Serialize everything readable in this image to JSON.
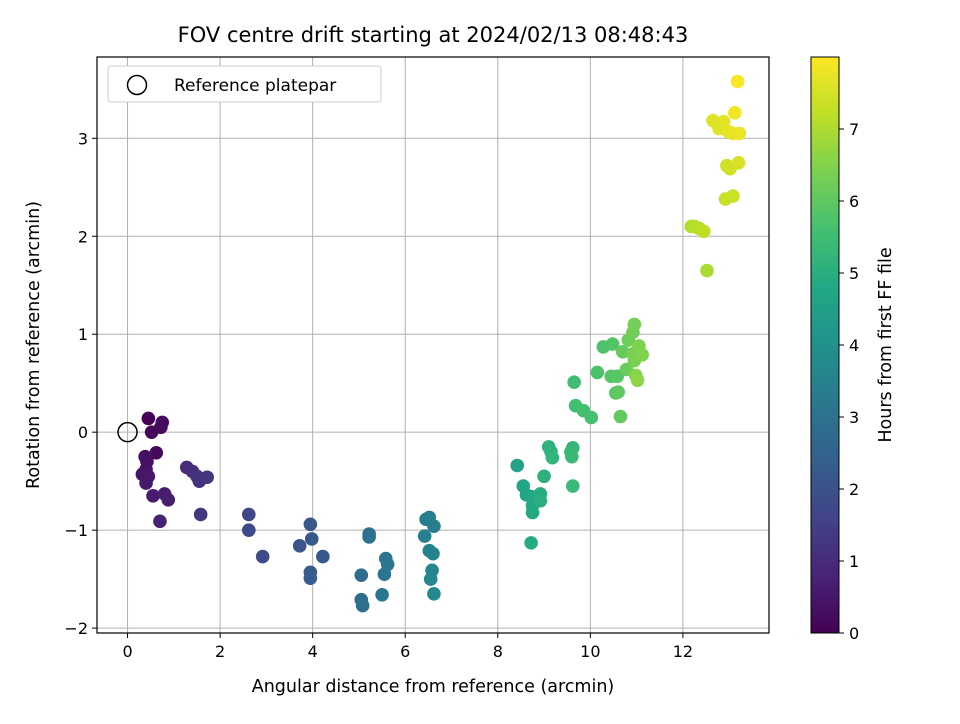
{
  "chart_data": {
    "type": "scatter",
    "title": "FOV centre drift starting at 2024/02/13 08:48:43",
    "xlabel": "Angular distance from reference (arcmin)",
    "ylabel": "Rotation from reference (arcmin)",
    "xlim": [
      -0.66,
      13.86
    ],
    "ylim": [
      -2.05,
      3.83
    ],
    "xticks": [
      0,
      2,
      4,
      6,
      8,
      10,
      12
    ],
    "yticks": [
      -2,
      -1,
      0,
      1,
      2,
      3
    ],
    "grid": true,
    "legend": {
      "position": "top-left",
      "entries": [
        "Reference platepar"
      ]
    },
    "reference_point": {
      "x": 0,
      "y": 0
    },
    "colorbar": {
      "label": "Hours from first FF file",
      "range": [
        0,
        8
      ],
      "ticks": [
        0,
        1,
        2,
        3,
        4,
        5,
        6,
        7
      ],
      "colormap": "viridis"
    },
    "points": [
      {
        "x": 0.45,
        "y": 0.14,
        "t": 0.05
      },
      {
        "x": 0.52,
        "y": 0.0,
        "t": 0.1
      },
      {
        "x": 0.62,
        "y": -0.21,
        "t": 0.15
      },
      {
        "x": 0.75,
        "y": 0.1,
        "t": 0.2
      },
      {
        "x": 0.72,
        "y": 0.05,
        "t": 0.25
      },
      {
        "x": 0.38,
        "y": -0.25,
        "t": 0.3
      },
      {
        "x": 0.42,
        "y": -0.3,
        "t": 0.35
      },
      {
        "x": 0.4,
        "y": -0.38,
        "t": 0.4
      },
      {
        "x": 0.32,
        "y": -0.43,
        "t": 0.45
      },
      {
        "x": 0.45,
        "y": -0.45,
        "t": 0.5
      },
      {
        "x": 0.4,
        "y": -0.52,
        "t": 0.55
      },
      {
        "x": 0.55,
        "y": -0.65,
        "t": 0.6
      },
      {
        "x": 0.8,
        "y": -0.63,
        "t": 0.65
      },
      {
        "x": 0.88,
        "y": -0.69,
        "t": 0.7
      },
      {
        "x": 0.7,
        "y": -0.91,
        "t": 0.75
      },
      {
        "x": 1.28,
        "y": -0.36,
        "t": 1.0
      },
      {
        "x": 1.4,
        "y": -0.4,
        "t": 1.05
      },
      {
        "x": 1.5,
        "y": -0.45,
        "t": 1.1
      },
      {
        "x": 1.55,
        "y": -0.5,
        "t": 1.15
      },
      {
        "x": 1.72,
        "y": -0.46,
        "t": 1.2
      },
      {
        "x": 1.58,
        "y": -0.84,
        "t": 1.25
      },
      {
        "x": 2.62,
        "y": -0.84,
        "t": 1.7
      },
      {
        "x": 2.62,
        "y": -1.0,
        "t": 1.75
      },
      {
        "x": 2.92,
        "y": -1.27,
        "t": 1.8
      },
      {
        "x": 3.72,
        "y": -1.16,
        "t": 2.1
      },
      {
        "x": 3.95,
        "y": -0.94,
        "t": 2.15
      },
      {
        "x": 3.98,
        "y": -1.09,
        "t": 2.2
      },
      {
        "x": 4.22,
        "y": -1.27,
        "t": 2.25
      },
      {
        "x": 3.95,
        "y": -1.43,
        "t": 2.3
      },
      {
        "x": 3.95,
        "y": -1.49,
        "t": 2.35
      },
      {
        "x": 5.05,
        "y": -1.46,
        "t": 2.8
      },
      {
        "x": 5.05,
        "y": -1.71,
        "t": 2.85
      },
      {
        "x": 5.08,
        "y": -1.77,
        "t": 2.9
      },
      {
        "x": 5.22,
        "y": -1.04,
        "t": 2.95
      },
      {
        "x": 5.22,
        "y": -1.07,
        "t": 3.0
      },
      {
        "x": 5.58,
        "y": -1.29,
        "t": 3.05
      },
      {
        "x": 5.62,
        "y": -1.35,
        "t": 3.1
      },
      {
        "x": 5.55,
        "y": -1.45,
        "t": 3.15
      },
      {
        "x": 5.5,
        "y": -1.66,
        "t": 3.2
      },
      {
        "x": 6.45,
        "y": -0.89,
        "t": 3.3
      },
      {
        "x": 6.52,
        "y": -0.87,
        "t": 3.35
      },
      {
        "x": 6.62,
        "y": -0.96,
        "t": 3.4
      },
      {
        "x": 6.42,
        "y": -1.06,
        "t": 3.45
      },
      {
        "x": 6.52,
        "y": -1.21,
        "t": 3.5
      },
      {
        "x": 6.6,
        "y": -1.24,
        "t": 3.55
      },
      {
        "x": 6.58,
        "y": -1.41,
        "t": 3.6
      },
      {
        "x": 6.55,
        "y": -1.5,
        "t": 3.65
      },
      {
        "x": 6.62,
        "y": -1.65,
        "t": 3.7
      },
      {
        "x": 8.42,
        "y": -0.34,
        "t": 4.6
      },
      {
        "x": 8.55,
        "y": -0.55,
        "t": 4.65
      },
      {
        "x": 8.62,
        "y": -0.64,
        "t": 4.7
      },
      {
        "x": 8.75,
        "y": -0.66,
        "t": 4.75
      },
      {
        "x": 8.75,
        "y": -0.75,
        "t": 4.8
      },
      {
        "x": 8.75,
        "y": -0.82,
        "t": 4.85
      },
      {
        "x": 8.72,
        "y": -1.13,
        "t": 4.9
      },
      {
        "x": 8.92,
        "y": -0.63,
        "t": 4.95
      },
      {
        "x": 8.92,
        "y": -0.7,
        "t": 5.0
      },
      {
        "x": 9.0,
        "y": -0.45,
        "t": 5.05
      },
      {
        "x": 9.1,
        "y": -0.15,
        "t": 5.1
      },
      {
        "x": 9.15,
        "y": -0.2,
        "t": 5.15
      },
      {
        "x": 9.18,
        "y": -0.26,
        "t": 5.2
      },
      {
        "x": 9.62,
        "y": -0.16,
        "t": 5.25
      },
      {
        "x": 9.58,
        "y": -0.2,
        "t": 5.3
      },
      {
        "x": 9.6,
        "y": -0.25,
        "t": 5.35
      },
      {
        "x": 9.62,
        "y": -0.55,
        "t": 5.4
      },
      {
        "x": 9.65,
        "y": 0.51,
        "t": 5.5
      },
      {
        "x": 9.68,
        "y": 0.27,
        "t": 5.55
      },
      {
        "x": 9.85,
        "y": 0.22,
        "t": 5.6
      },
      {
        "x": 10.02,
        "y": 0.15,
        "t": 5.65
      },
      {
        "x": 10.15,
        "y": 0.61,
        "t": 5.7
      },
      {
        "x": 10.28,
        "y": 0.87,
        "t": 5.75
      },
      {
        "x": 10.48,
        "y": 0.9,
        "t": 5.8
      },
      {
        "x": 10.45,
        "y": 0.57,
        "t": 5.85
      },
      {
        "x": 10.58,
        "y": 0.57,
        "t": 5.9
      },
      {
        "x": 10.55,
        "y": 0.4,
        "t": 5.95
      },
      {
        "x": 10.6,
        "y": 0.41,
        "t": 6.0
      },
      {
        "x": 10.65,
        "y": 0.16,
        "t": 6.05
      },
      {
        "x": 10.7,
        "y": 0.82,
        "t": 6.1
      },
      {
        "x": 10.78,
        "y": 0.64,
        "t": 6.15
      },
      {
        "x": 10.82,
        "y": 0.94,
        "t": 6.2
      },
      {
        "x": 10.92,
        "y": 1.02,
        "t": 6.25
      },
      {
        "x": 10.95,
        "y": 1.1,
        "t": 6.3
      },
      {
        "x": 10.92,
        "y": 0.8,
        "t": 6.35
      },
      {
        "x": 10.95,
        "y": 0.73,
        "t": 6.4
      },
      {
        "x": 11.05,
        "y": 0.88,
        "t": 6.45
      },
      {
        "x": 11.12,
        "y": 0.79,
        "t": 6.5
      },
      {
        "x": 10.98,
        "y": 0.58,
        "t": 6.55
      },
      {
        "x": 11.02,
        "y": 0.53,
        "t": 6.6
      },
      {
        "x": 12.52,
        "y": 1.65,
        "t": 7.0
      },
      {
        "x": 12.18,
        "y": 2.1,
        "t": 7.05
      },
      {
        "x": 12.25,
        "y": 2.1,
        "t": 7.1
      },
      {
        "x": 12.35,
        "y": 2.08,
        "t": 7.15
      },
      {
        "x": 12.45,
        "y": 2.05,
        "t": 7.2
      },
      {
        "x": 12.92,
        "y": 2.38,
        "t": 7.3
      },
      {
        "x": 13.08,
        "y": 2.41,
        "t": 7.35
      },
      {
        "x": 12.95,
        "y": 2.72,
        "t": 7.4
      },
      {
        "x": 13.02,
        "y": 2.69,
        "t": 7.45
      },
      {
        "x": 13.2,
        "y": 2.75,
        "t": 7.5
      },
      {
        "x": 12.65,
        "y": 3.18,
        "t": 7.6
      },
      {
        "x": 12.78,
        "y": 3.1,
        "t": 7.62
      },
      {
        "x": 12.88,
        "y": 3.17,
        "t": 7.65
      },
      {
        "x": 12.98,
        "y": 3.07,
        "t": 7.7
      },
      {
        "x": 13.08,
        "y": 3.05,
        "t": 7.75
      },
      {
        "x": 13.22,
        "y": 3.05,
        "t": 7.78
      },
      {
        "x": 13.12,
        "y": 3.26,
        "t": 7.85
      },
      {
        "x": 13.18,
        "y": 3.58,
        "t": 7.95
      }
    ]
  }
}
